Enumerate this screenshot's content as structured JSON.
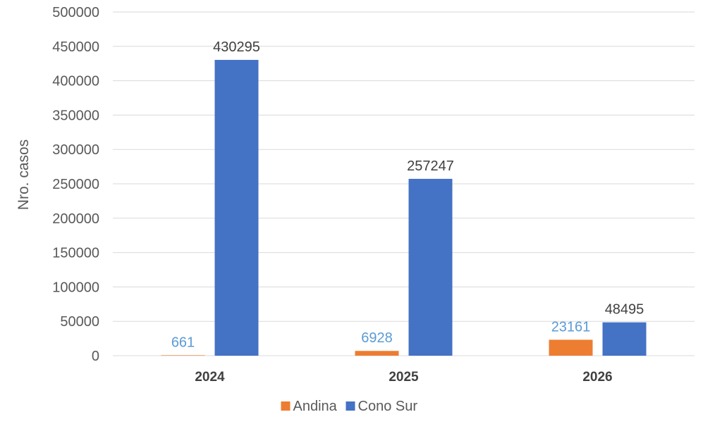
{
  "chart_data": {
    "type": "bar",
    "categories": [
      "2024",
      "2025",
      "2026"
    ],
    "series": [
      {
        "name": "Andina",
        "values": [
          661,
          6928,
          23161
        ],
        "color": "#ED7D31",
        "label_color": "#5B9BD5"
      },
      {
        "name": "Cono Sur",
        "values": [
          430295,
          257247,
          48495
        ],
        "color": "#4472C4",
        "label_color": "#404040"
      }
    ],
    "ylabel": "Nro. casos",
    "ylim": [
      0,
      500000
    ],
    "yticks": [
      0,
      50000,
      100000,
      150000,
      200000,
      250000,
      300000,
      350000,
      400000,
      450000,
      500000
    ],
    "grid": true,
    "legend": "bottom-center",
    "colors": {
      "gridline": "#D9D9D9",
      "tick_text": "#595959",
      "category_text": "#404040"
    }
  }
}
